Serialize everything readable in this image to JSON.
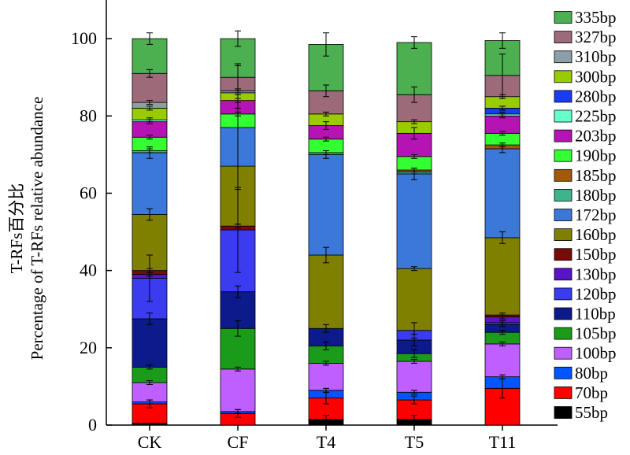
{
  "chart_data": {
    "type": "bar",
    "stacked": true,
    "title": "",
    "xlabel": "",
    "ylabel_line1": "T-RFs百分比",
    "ylabel_line2": "Percentage of T-RFs relative abundance",
    "ylim": [
      0,
      110
    ],
    "yticks": [
      0,
      20,
      40,
      60,
      80,
      100
    ],
    "grid": false,
    "legend_position": "right",
    "categories": [
      "CK",
      "CF",
      "T4",
      "T5",
      "T11"
    ],
    "series": [
      {
        "name": "55bp",
        "color": "#000000",
        "values": [
          0.5,
          0,
          1.5,
          1.5,
          0
        ],
        "errors": [
          0,
          0,
          1,
          1,
          0
        ]
      },
      {
        "name": "70bp",
        "color": "#ff0000",
        "values": [
          5,
          3,
          5.5,
          5,
          9.5
        ],
        "errors": [
          1,
          1,
          1.5,
          1,
          2.5
        ]
      },
      {
        "name": "80bp",
        "color": "#0055ff",
        "values": [
          0.5,
          0.5,
          2,
          2,
          3
        ],
        "errors": [
          0.5,
          0.5,
          0.5,
          0.5,
          0.5
        ]
      },
      {
        "name": "100bp",
        "color": "#bf5fff",
        "values": [
          5,
          11,
          7,
          8,
          8.5
        ],
        "errors": [
          0.5,
          0.5,
          0.5,
          0.5,
          0.5
        ]
      },
      {
        "name": "105bp",
        "color": "#1a9c1a",
        "values": [
          4,
          10.5,
          4.5,
          2,
          3
        ],
        "errors": [
          0.5,
          2,
          1,
          1,
          0.5
        ]
      },
      {
        "name": "110bp",
        "color": "#0c1a8c",
        "values": [
          12.5,
          9.5,
          4.5,
          3.5,
          2
        ],
        "errors": [
          1.5,
          1.5,
          1,
          1.5,
          0.5
        ]
      },
      {
        "name": "120bp",
        "color": "#3b3bf0",
        "values": [
          10.5,
          16,
          0,
          2.5,
          0.5
        ],
        "errors": [
          6,
          11,
          0,
          2,
          0.5
        ]
      },
      {
        "name": "130bp",
        "color": "#5a14c8",
        "values": [
          1,
          0,
          0,
          0,
          1.5
        ],
        "errors": [
          0.5,
          0,
          0,
          0,
          0.5
        ]
      },
      {
        "name": "150bp",
        "color": "#780a0a",
        "values": [
          1,
          1,
          0,
          0,
          0.5
        ],
        "errors": [
          0.5,
          0.5,
          0,
          0,
          0.5
        ]
      },
      {
        "name": "160bp",
        "color": "#808000",
        "values": [
          14.5,
          15.5,
          19,
          16,
          20
        ],
        "errors": [
          1.5,
          15,
          2,
          0.5,
          1.5
        ]
      },
      {
        "name": "172bp",
        "color": "#3c78d8",
        "values": [
          16,
          10,
          26,
          24.5,
          23
        ],
        "errors": [
          1.5,
          16,
          1,
          1.5,
          1
        ]
      },
      {
        "name": "180bp",
        "color": "#3cb48c",
        "values": [
          0.5,
          0,
          0.5,
          0.5,
          0
        ],
        "errors": [
          0.5,
          0,
          0.5,
          0.5,
          0
        ]
      },
      {
        "name": "185bp",
        "color": "#a05a0a",
        "values": [
          0,
          0,
          0,
          0.5,
          1
        ],
        "errors": [
          0,
          0,
          0,
          0.5,
          0.5
        ]
      },
      {
        "name": "190bp",
        "color": "#33ff33",
        "values": [
          3.5,
          3.5,
          3.5,
          3.5,
          3
        ],
        "errors": [
          0.5,
          0.5,
          0.5,
          0.5,
          0.5
        ]
      },
      {
        "name": "203bp",
        "color": "#b414b4",
        "values": [
          4,
          3.5,
          3.5,
          6,
          4.5
        ],
        "errors": [
          0.5,
          0.5,
          1,
          1.5,
          0.5
        ]
      },
      {
        "name": "225bp",
        "color": "#66ffcc",
        "values": [
          0.5,
          0,
          0,
          0,
          0.5
        ],
        "errors": [
          0.5,
          0,
          0,
          0,
          0.5
        ]
      },
      {
        "name": "280bp",
        "color": "#1a3cf0",
        "values": [
          0,
          0,
          0,
          0,
          1.5
        ],
        "errors": [
          0,
          0,
          0,
          0,
          0.5
        ]
      },
      {
        "name": "300bp",
        "color": "#99cc00",
        "values": [
          3,
          2,
          3,
          3,
          3
        ],
        "errors": [
          0.5,
          0.5,
          0.5,
          0.5,
          0.5
        ]
      },
      {
        "name": "310bp",
        "color": "#8c9ea6",
        "values": [
          1.5,
          0.5,
          0,
          0,
          0
        ],
        "errors": [
          0.5,
          0.5,
          0,
          0,
          0
        ]
      },
      {
        "name": "327bp",
        "color": "#9c6a78",
        "values": [
          7.5,
          3.5,
          6,
          7,
          5.5
        ],
        "errors": [
          1,
          3.5,
          1.5,
          2,
          5.5
        ]
      },
      {
        "name": "335bp",
        "color": "#4caf50",
        "values": [
          9,
          10,
          12,
          13.5,
          9
        ],
        "errors": [
          1.5,
          2,
          3,
          1.5,
          2
        ]
      }
    ]
  }
}
